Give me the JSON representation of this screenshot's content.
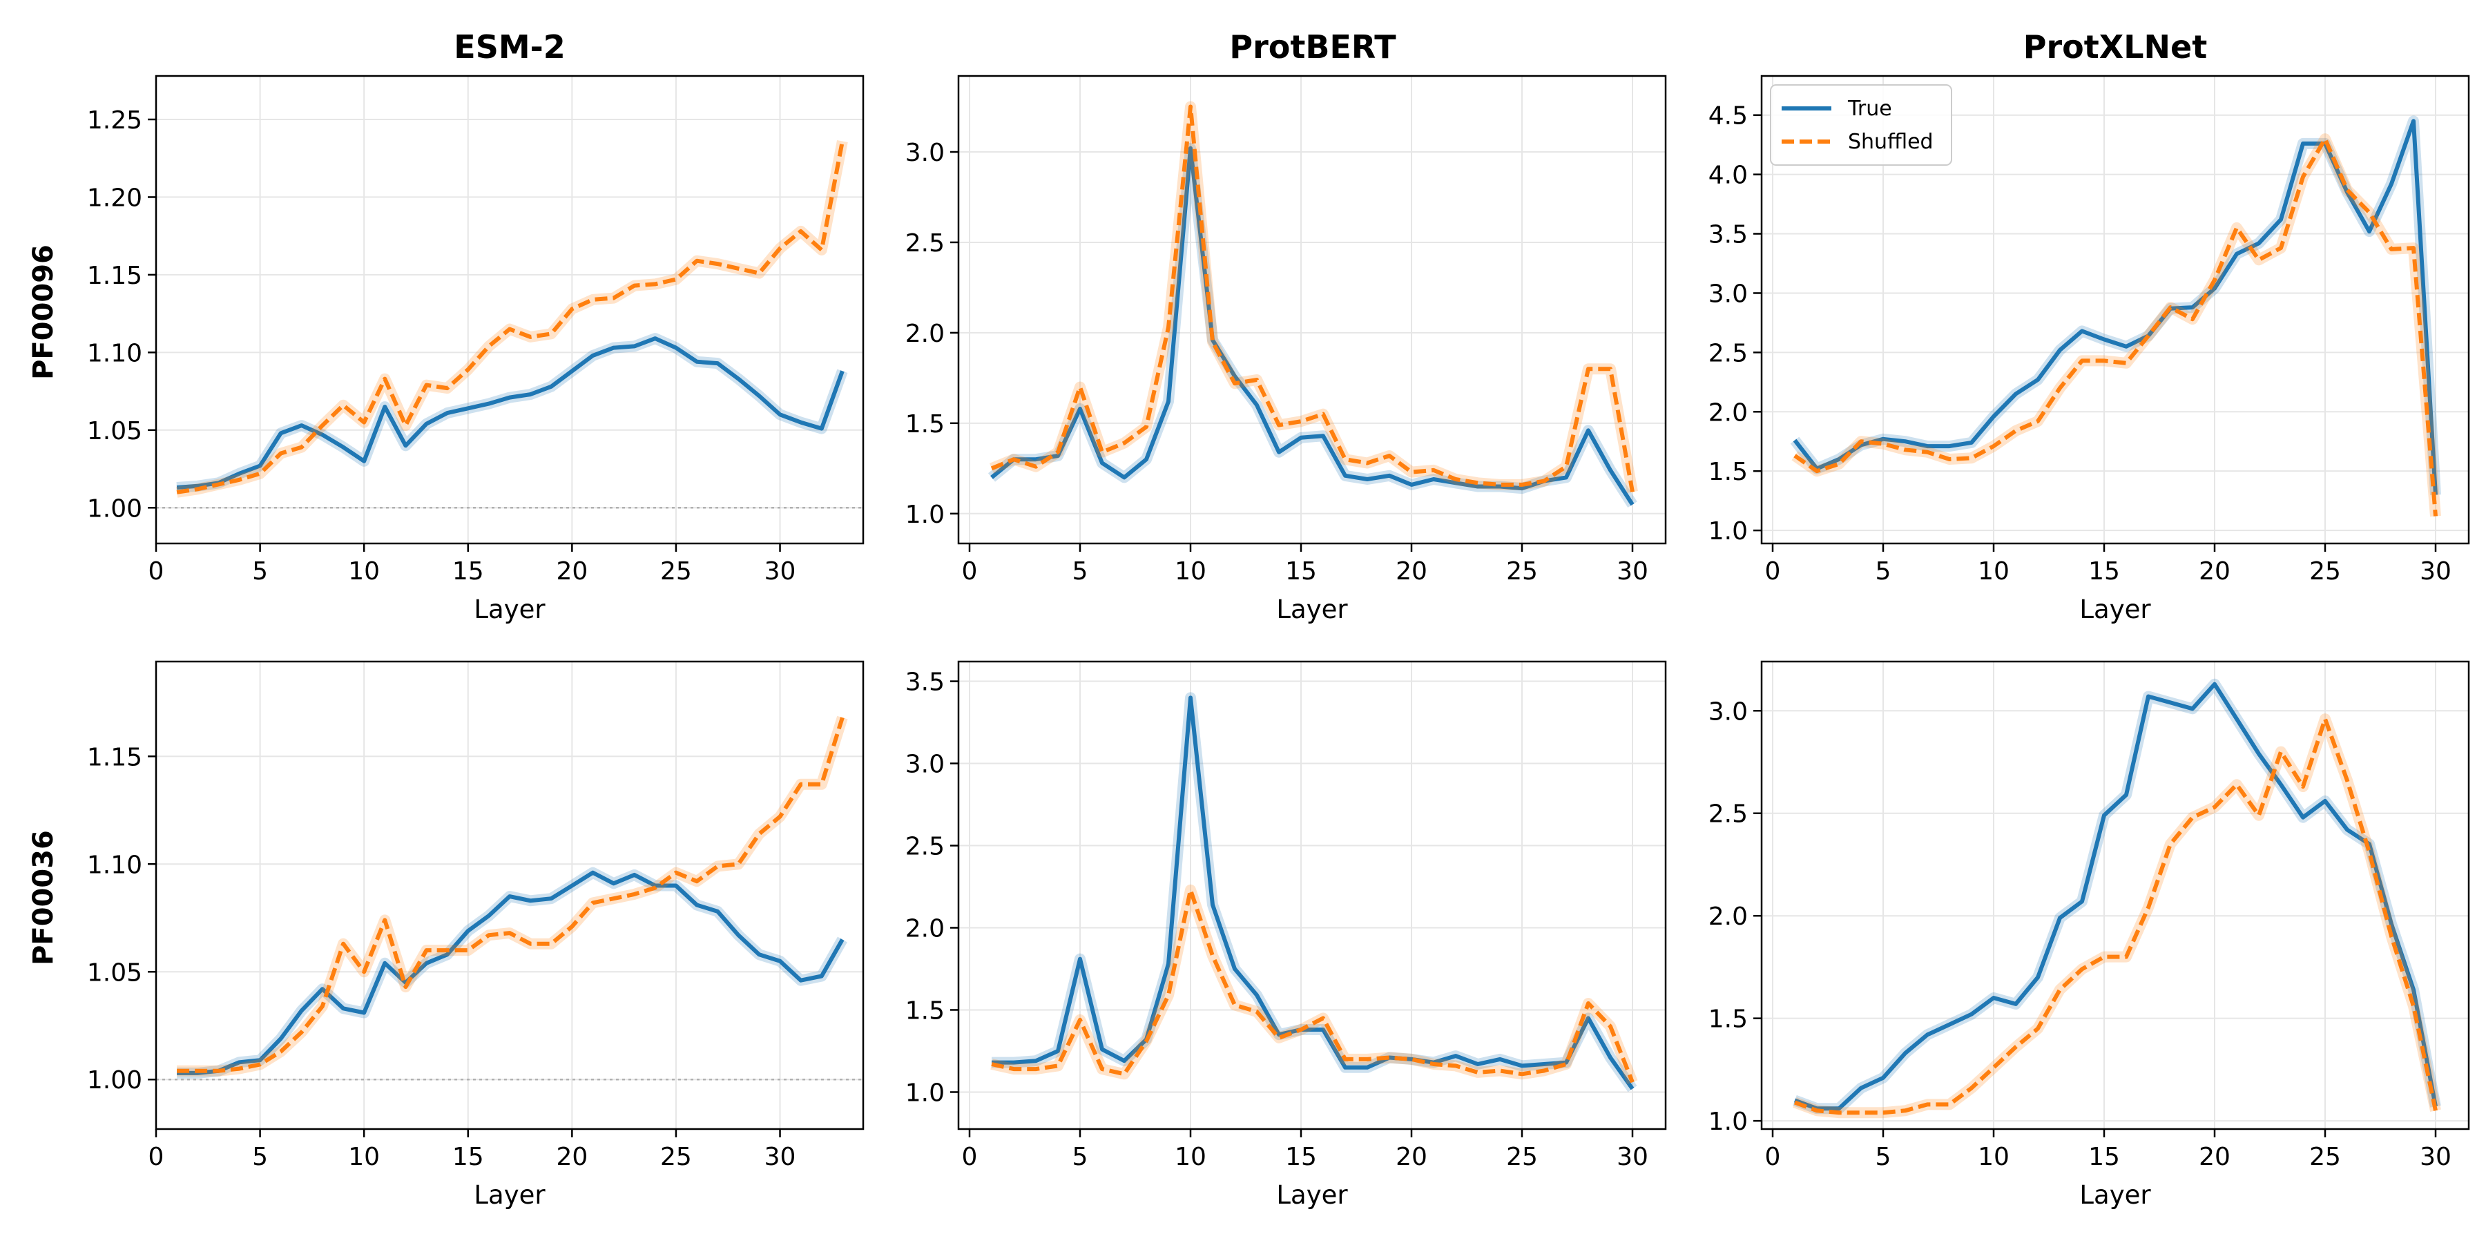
{
  "figure": {
    "col_titles": [
      "ESM-2",
      "ProtBERT",
      "ProtXLNet"
    ],
    "row_labels": [
      "PF00096",
      "PF00036"
    ],
    "xlabel": "Layer",
    "legend": {
      "labels": [
        "True",
        "Shuffled"
      ],
      "placement": "top-left",
      "panel": "top-right"
    },
    "colors": {
      "true": "#1f77b4",
      "shuffled": "#ff7f0e",
      "grid": "#e6e6e6",
      "ref_line": "#b0b0b0"
    }
  },
  "chart_data": [
    {
      "type": "line",
      "row": 0,
      "col": 0,
      "panel": "PF00096 / ESM-2",
      "xlim": [
        0,
        34
      ],
      "ylim": [
        0.977,
        1.278
      ],
      "xticks": [
        0,
        5,
        10,
        15,
        20,
        25,
        30
      ],
      "yticks": [
        1.0,
        1.05,
        1.1,
        1.15,
        1.2,
        1.25
      ],
      "ytick_decimals": 2,
      "reference_line_y": 1.0,
      "grid": true,
      "x": [
        1,
        2,
        3,
        4,
        5,
        6,
        7,
        8,
        9,
        10,
        11,
        12,
        13,
        14,
        15,
        16,
        17,
        18,
        19,
        20,
        21,
        22,
        23,
        24,
        25,
        26,
        27,
        28,
        29,
        30,
        31,
        32,
        33
      ],
      "series": [
        {
          "name": "True",
          "style": "solid",
          "values": [
            1.013,
            1.014,
            1.016,
            1.022,
            1.027,
            1.048,
            1.053,
            1.047,
            1.039,
            1.03,
            1.065,
            1.04,
            1.054,
            1.061,
            1.064,
            1.067,
            1.071,
            1.073,
            1.078,
            1.088,
            1.098,
            1.103,
            1.104,
            1.109,
            1.103,
            1.094,
            1.093,
            1.083,
            1.072,
            1.06,
            1.055,
            1.051,
            1.088
          ]
        },
        {
          "name": "Shuffled",
          "style": "dashed",
          "values": [
            1.01,
            1.012,
            1.015,
            1.018,
            1.022,
            1.035,
            1.039,
            1.053,
            1.066,
            1.055,
            1.083,
            1.053,
            1.079,
            1.077,
            1.089,
            1.104,
            1.115,
            1.11,
            1.112,
            1.128,
            1.134,
            1.135,
            1.143,
            1.144,
            1.147,
            1.159,
            1.157,
            1.154,
            1.151,
            1.167,
            1.178,
            1.166,
            1.236
          ]
        }
      ]
    },
    {
      "type": "line",
      "row": 0,
      "col": 1,
      "panel": "PF00096 / ProtBERT",
      "xlim": [
        -0.5,
        31.5
      ],
      "ylim": [
        0.835,
        3.42
      ],
      "xticks": [
        0,
        5,
        10,
        15,
        20,
        25,
        30
      ],
      "yticks": [
        1.0,
        1.5,
        2.0,
        2.5,
        3.0
      ],
      "ytick_decimals": 1,
      "grid": true,
      "x": [
        1,
        2,
        3,
        4,
        5,
        6,
        7,
        8,
        9,
        10,
        11,
        12,
        13,
        14,
        15,
        16,
        17,
        18,
        19,
        20,
        21,
        22,
        23,
        24,
        25,
        26,
        27,
        28,
        29,
        30
      ],
      "series": [
        {
          "name": "True",
          "style": "solid",
          "values": [
            1.2,
            1.3,
            1.3,
            1.32,
            1.58,
            1.28,
            1.2,
            1.3,
            1.62,
            3.02,
            1.96,
            1.76,
            1.6,
            1.34,
            1.42,
            1.43,
            1.21,
            1.19,
            1.21,
            1.16,
            1.19,
            1.17,
            1.15,
            1.15,
            1.14,
            1.18,
            1.2,
            1.46,
            1.24,
            1.05
          ]
        },
        {
          "name": "Shuffled",
          "style": "dashed",
          "values": [
            1.25,
            1.3,
            1.26,
            1.34,
            1.7,
            1.34,
            1.39,
            1.48,
            2.03,
            3.25,
            1.95,
            1.72,
            1.74,
            1.49,
            1.51,
            1.55,
            1.3,
            1.28,
            1.32,
            1.23,
            1.24,
            1.19,
            1.17,
            1.16,
            1.16,
            1.18,
            1.26,
            1.8,
            1.8,
            1.12
          ]
        }
      ]
    },
    {
      "type": "line",
      "row": 0,
      "col": 2,
      "panel": "PF00096 / ProtXLNet",
      "xlim": [
        -0.5,
        31.5
      ],
      "ylim": [
        0.89,
        4.83
      ],
      "xticks": [
        0,
        5,
        10,
        15,
        20,
        25,
        30
      ],
      "yticks": [
        1.0,
        1.5,
        2.0,
        2.5,
        3.0,
        3.5,
        4.0,
        4.5
      ],
      "ytick_decimals": 1,
      "grid": true,
      "x": [
        1,
        2,
        3,
        4,
        5,
        6,
        7,
        8,
        9,
        10,
        11,
        12,
        13,
        14,
        15,
        16,
        17,
        18,
        19,
        20,
        21,
        22,
        23,
        24,
        25,
        26,
        27,
        28,
        29,
        30
      ],
      "series": [
        {
          "name": "True",
          "style": "solid",
          "values": [
            1.76,
            1.52,
            1.6,
            1.72,
            1.77,
            1.75,
            1.71,
            1.71,
            1.74,
            1.96,
            2.15,
            2.27,
            2.52,
            2.68,
            2.61,
            2.55,
            2.64,
            2.87,
            2.88,
            3.04,
            3.33,
            3.42,
            3.62,
            4.26,
            4.26,
            3.85,
            3.52,
            3.92,
            4.45,
            1.3
          ]
        },
        {
          "name": "Shuffled",
          "style": "dashed",
          "values": [
            1.63,
            1.5,
            1.56,
            1.75,
            1.73,
            1.68,
            1.66,
            1.6,
            1.61,
            1.71,
            1.84,
            1.92,
            2.2,
            2.43,
            2.43,
            2.41,
            2.64,
            2.88,
            2.78,
            3.11,
            3.55,
            3.28,
            3.38,
            3.98,
            4.3,
            3.87,
            3.68,
            3.37,
            3.38,
            1.12
          ]
        }
      ]
    },
    {
      "type": "line",
      "row": 1,
      "col": 0,
      "panel": "PF00036 / ESM-2",
      "xlim": [
        0,
        34
      ],
      "ylim": [
        0.977,
        1.194
      ],
      "xticks": [
        0,
        5,
        10,
        15,
        20,
        25,
        30
      ],
      "yticks": [
        1.0,
        1.05,
        1.1,
        1.15
      ],
      "ytick_decimals": 2,
      "reference_line_y": 1.0,
      "grid": true,
      "x": [
        1,
        2,
        3,
        4,
        5,
        6,
        7,
        8,
        9,
        10,
        11,
        12,
        13,
        14,
        15,
        16,
        17,
        18,
        19,
        20,
        21,
        22,
        23,
        24,
        25,
        26,
        27,
        28,
        29,
        30,
        31,
        32,
        33
      ],
      "series": [
        {
          "name": "True",
          "style": "solid",
          "values": [
            1.003,
            1.003,
            1.004,
            1.008,
            1.009,
            1.019,
            1.032,
            1.042,
            1.033,
            1.031,
            1.054,
            1.045,
            1.054,
            1.058,
            1.069,
            1.076,
            1.085,
            1.083,
            1.084,
            1.09,
            1.096,
            1.091,
            1.095,
            1.09,
            1.09,
            1.081,
            1.078,
            1.067,
            1.058,
            1.055,
            1.046,
            1.048,
            1.065
          ]
        },
        {
          "name": "Shuffled",
          "style": "dashed",
          "values": [
            1.004,
            1.004,
            1.004,
            1.005,
            1.007,
            1.013,
            1.022,
            1.034,
            1.063,
            1.05,
            1.074,
            1.043,
            1.06,
            1.06,
            1.06,
            1.067,
            1.068,
            1.063,
            1.063,
            1.071,
            1.082,
            1.084,
            1.086,
            1.089,
            1.096,
            1.092,
            1.099,
            1.1,
            1.114,
            1.122,
            1.137,
            1.137,
            1.168
          ]
        }
      ]
    },
    {
      "type": "line",
      "row": 1,
      "col": 1,
      "panel": "PF00036 / ProtBERT",
      "xlim": [
        -0.5,
        31.5
      ],
      "ylim": [
        0.775,
        3.62
      ],
      "xticks": [
        0,
        5,
        10,
        15,
        20,
        25,
        30
      ],
      "yticks": [
        1.0,
        1.5,
        2.0,
        2.5,
        3.0,
        3.5
      ],
      "ytick_decimals": 1,
      "grid": true,
      "x": [
        1,
        2,
        3,
        4,
        5,
        6,
        7,
        8,
        9,
        10,
        11,
        12,
        13,
        14,
        15,
        16,
        17,
        18,
        19,
        20,
        21,
        22,
        23,
        24,
        25,
        26,
        27,
        28,
        29,
        30
      ],
      "series": [
        {
          "name": "True",
          "style": "solid",
          "values": [
            1.18,
            1.18,
            1.19,
            1.25,
            1.81,
            1.26,
            1.19,
            1.32,
            1.78,
            3.4,
            2.14,
            1.75,
            1.59,
            1.35,
            1.38,
            1.38,
            1.15,
            1.15,
            1.21,
            1.2,
            1.18,
            1.22,
            1.17,
            1.2,
            1.16,
            1.17,
            1.18,
            1.45,
            1.21,
            1.02
          ]
        },
        {
          "name": "Shuffled",
          "style": "dashed",
          "values": [
            1.17,
            1.14,
            1.14,
            1.16,
            1.44,
            1.14,
            1.11,
            1.31,
            1.59,
            2.23,
            1.83,
            1.53,
            1.49,
            1.33,
            1.38,
            1.45,
            1.2,
            1.2,
            1.21,
            1.2,
            1.17,
            1.16,
            1.12,
            1.13,
            1.11,
            1.13,
            1.17,
            1.54,
            1.4,
            1.06
          ]
        }
      ]
    },
    {
      "type": "line",
      "row": 1,
      "col": 2,
      "panel": "PF00036 / ProtXLNet",
      "xlim": [
        -0.5,
        31.5
      ],
      "ylim": [
        0.96,
        3.24
      ],
      "xticks": [
        0,
        5,
        10,
        15,
        20,
        25,
        30
      ],
      "yticks": [
        1.0,
        1.5,
        2.0,
        2.5,
        3.0
      ],
      "ytick_decimals": 1,
      "grid": true,
      "x": [
        1,
        2,
        3,
        4,
        5,
        6,
        7,
        8,
        9,
        10,
        11,
        12,
        13,
        14,
        15,
        16,
        17,
        18,
        19,
        20,
        21,
        22,
        23,
        24,
        25,
        26,
        27,
        28,
        29,
        30
      ],
      "series": [
        {
          "name": "True",
          "style": "solid",
          "values": [
            1.1,
            1.06,
            1.06,
            1.16,
            1.21,
            1.33,
            1.42,
            1.47,
            1.52,
            1.6,
            1.57,
            1.7,
            1.99,
            2.07,
            2.49,
            2.59,
            3.07,
            3.04,
            3.01,
            3.13,
            2.96,
            2.79,
            2.64,
            2.48,
            2.56,
            2.42,
            2.35,
            1.96,
            1.64,
            1.07
          ]
        },
        {
          "name": "Shuffled",
          "style": "dashed",
          "values": [
            1.09,
            1.05,
            1.04,
            1.04,
            1.04,
            1.05,
            1.08,
            1.08,
            1.16,
            1.26,
            1.36,
            1.45,
            1.64,
            1.74,
            1.8,
            1.8,
            2.04,
            2.35,
            2.48,
            2.53,
            2.64,
            2.49,
            2.8,
            2.63,
            2.96,
            2.66,
            2.31,
            1.9,
            1.56,
            1.05
          ]
        }
      ]
    }
  ]
}
